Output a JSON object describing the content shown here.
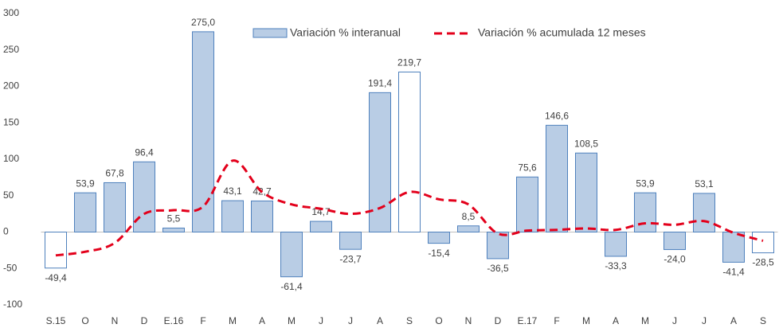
{
  "chart_data": {
    "type": "bar",
    "categories": [
      "S.15",
      "O",
      "N",
      "D",
      "E.16",
      "F",
      "M",
      "A",
      "M",
      "J",
      "J",
      "A",
      "S",
      "O",
      "N",
      "D",
      "E.17",
      "F",
      "M",
      "A",
      "M",
      "J",
      "J",
      "A",
      "S"
    ],
    "series": [
      {
        "name": "Variación % interanual",
        "type": "bar",
        "color": "#b9cde5",
        "edge_color": "#4f81bd",
        "colors": [
          "#ffffff",
          "#b9cde5",
          "#b9cde5",
          "#b9cde5",
          "#b9cde5",
          "#b9cde5",
          "#b9cde5",
          "#b9cde5",
          "#b9cde5",
          "#b9cde5",
          "#b9cde5",
          "#b9cde5",
          "#ffffff",
          "#b9cde5",
          "#b9cde5",
          "#b9cde5",
          "#b9cde5",
          "#b9cde5",
          "#b9cde5",
          "#b9cde5",
          "#b9cde5",
          "#b9cde5",
          "#b9cde5",
          "#b9cde5",
          "#ffffff"
        ],
        "values": [
          -49.4,
          53.9,
          67.8,
          96.4,
          5.5,
          275.0,
          43.1,
          42.7,
          -61.4,
          14.7,
          -23.7,
          191.4,
          219.7,
          -15.4,
          8.5,
          -36.5,
          75.6,
          146.6,
          108.5,
          -33.3,
          53.9,
          -24.0,
          53.1,
          -41.4,
          -28.5
        ],
        "value_labels": [
          "-49,4",
          "53,9",
          "67,8",
          "96,4",
          "5,5",
          "275,0",
          "43,1",
          "42,7",
          "-61,4",
          "14,7",
          "-23,7",
          "191,4",
          "219,7",
          "-15,4",
          "8,5",
          "-36,5",
          "75,6",
          "146,6",
          "108,5",
          "-33,3",
          "53,9",
          "-24,0",
          "53,1",
          "-41,4",
          "-28,5"
        ]
      },
      {
        "name": "Variación % acumulada 12 meses",
        "type": "line",
        "color": "#e3001b",
        "values": [
          -32,
          -27,
          -15,
          25,
          30,
          35,
          98,
          55,
          38,
          32,
          25,
          33,
          55,
          45,
          38,
          -2,
          2,
          3,
          5,
          3,
          12,
          10,
          15,
          -1,
          -12
        ]
      }
    ],
    "ylim": [
      -100,
      300
    ],
    "yticks": [
      -100,
      -50,
      0,
      50,
      100,
      150,
      200,
      250,
      300
    ],
    "grid": false,
    "legend": "top"
  }
}
